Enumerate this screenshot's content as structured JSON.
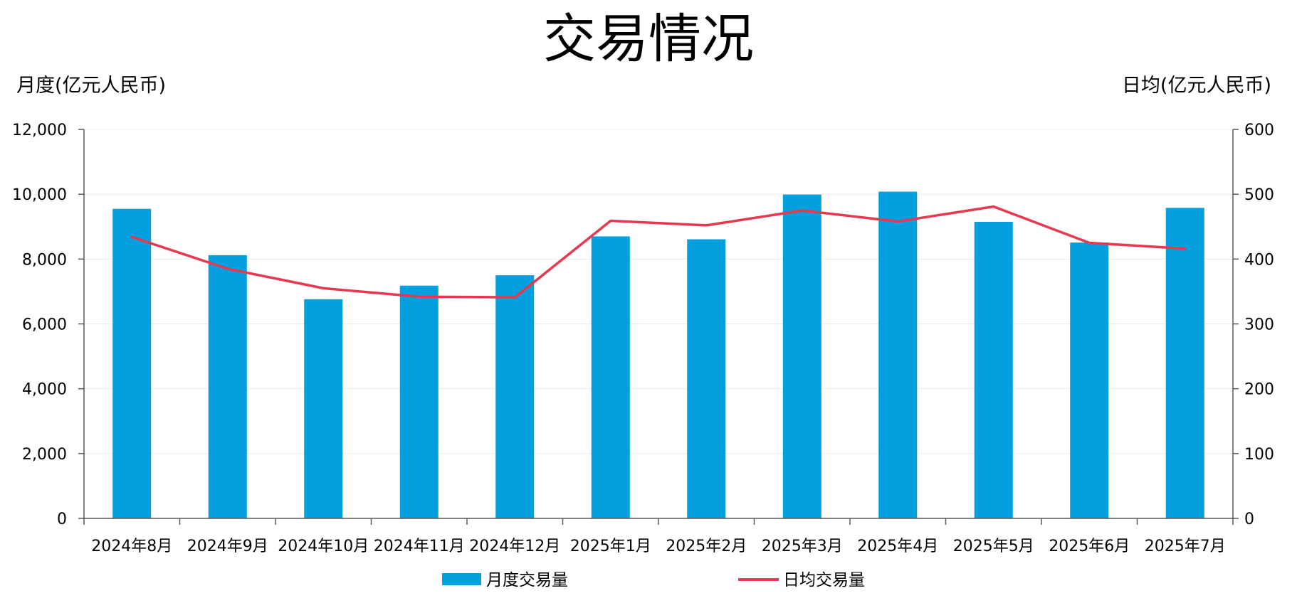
{
  "chart_data": {
    "type": "bar",
    "title": "交易情况",
    "ylabel_left": "月度(亿元人民币)",
    "ylabel_right": "日均(亿元人民币)",
    "categories": [
      "2024年8月",
      "2024年9月",
      "2024年10月",
      "2024年11月",
      "2024年12月",
      "2025年1月",
      "2025年2月",
      "2025年3月",
      "2025年4月",
      "2025年5月",
      "2025年6月",
      "2025年7月"
    ],
    "ylim_left": [
      0,
      12000
    ],
    "ylim_right": [
      0,
      600
    ],
    "yticks_left": [
      "0",
      "2,000",
      "4,000",
      "6,000",
      "8,000",
      "10,000",
      "12,000"
    ],
    "yticks_right": [
      "0",
      "100",
      "200",
      "300",
      "400",
      "500",
      "600"
    ],
    "grid": true,
    "legend_position": "bottom",
    "series": [
      {
        "name": "月度交易量",
        "type": "bar",
        "axis": "left",
        "color": "#049fdf",
        "values": [
          9550,
          8120,
          6760,
          7180,
          7500,
          8700,
          8610,
          9990,
          10080,
          9150,
          8510,
          9580
        ]
      },
      {
        "name": "日均交易量",
        "type": "line",
        "axis": "right",
        "color": "#e8384f",
        "values": [
          434,
          385,
          355,
          342,
          341,
          459,
          452,
          475,
          458,
          481,
          425,
          416
        ]
      }
    ]
  }
}
